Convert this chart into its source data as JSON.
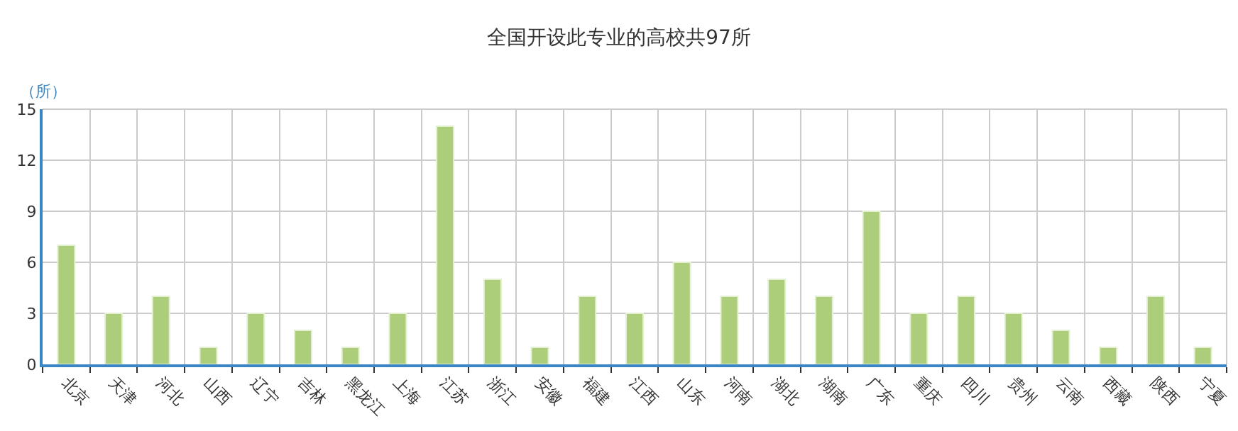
{
  "chart_data": {
    "type": "bar",
    "title": "全国开设此专业的高校共97所",
    "ylabel": "（所）",
    "categories": [
      "北京",
      "天津",
      "河北",
      "山西",
      "辽宁",
      "吉林",
      "黑龙江",
      "上海",
      "江苏",
      "浙江",
      "安徽",
      "福建",
      "江西",
      "山东",
      "河南",
      "湖北",
      "湖南",
      "广东",
      "重庆",
      "四川",
      "贵州",
      "云南",
      "西藏",
      "陕西",
      "宁夏"
    ],
    "values": [
      7,
      3,
      4,
      1,
      3,
      2,
      1,
      3,
      14,
      5,
      1,
      4,
      3,
      6,
      4,
      5,
      4,
      9,
      3,
      4,
      3,
      2,
      1,
      4,
      1
    ],
    "color": "#acce7a",
    "ylim": [
      0,
      15
    ],
    "yticks": [
      0,
      3,
      6,
      9,
      12,
      15
    ],
    "grid": true
  }
}
